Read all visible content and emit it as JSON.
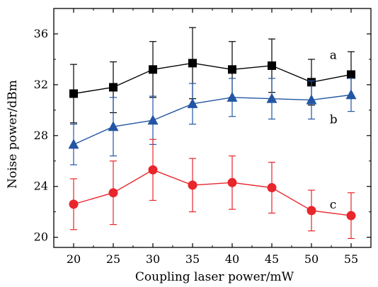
{
  "chart_data": {
    "type": "line",
    "xlabel": "Coupling laser power/mW",
    "ylabel": "Noise power/dBm",
    "x": [
      20,
      25,
      30,
      35,
      40,
      45,
      50,
      55
    ],
    "xticks": [
      "20",
      "25",
      "30",
      "35",
      "40",
      "45",
      "50",
      "55"
    ],
    "yticks": [
      "20",
      "24",
      "28",
      "32",
      "36"
    ],
    "xlim": [
      17.5,
      57.5
    ],
    "ylim": [
      19.2,
      38.0
    ],
    "grid": false,
    "series": [
      {
        "name": "a",
        "marker": "square",
        "color": "#000000",
        "values": [
          31.3,
          31.8,
          33.2,
          33.7,
          33.2,
          33.5,
          32.2,
          32.8
        ],
        "err_upper": [
          2.3,
          2.0,
          2.2,
          2.8,
          2.2,
          2.1,
          1.8,
          1.8
        ],
        "err_lower": [
          2.3,
          2.0,
          2.2,
          2.8,
          2.2,
          2.1,
          1.8,
          1.8
        ]
      },
      {
        "name": "b",
        "marker": "triangle",
        "color": "#2255a4",
        "values": [
          27.3,
          28.7,
          29.2,
          30.5,
          31.0,
          30.9,
          30.8,
          31.2
        ],
        "err_upper": [
          1.6,
          2.3,
          1.9,
          1.6,
          1.5,
          1.6,
          1.5,
          1.3
        ],
        "err_lower": [
          1.6,
          2.3,
          1.9,
          1.6,
          1.5,
          1.6,
          1.5,
          1.3
        ]
      },
      {
        "name": "c",
        "marker": "circle",
        "color": "#e8262b",
        "values": [
          22.6,
          23.5,
          25.3,
          24.1,
          24.3,
          23.9,
          22.1,
          21.7
        ],
        "err_upper": [
          2.0,
          2.5,
          2.4,
          2.1,
          2.1,
          2.0,
          1.6,
          1.8
        ],
        "err_lower": [
          2.0,
          2.5,
          2.4,
          2.1,
          2.1,
          2.0,
          1.6,
          1.8
        ]
      }
    ]
  }
}
